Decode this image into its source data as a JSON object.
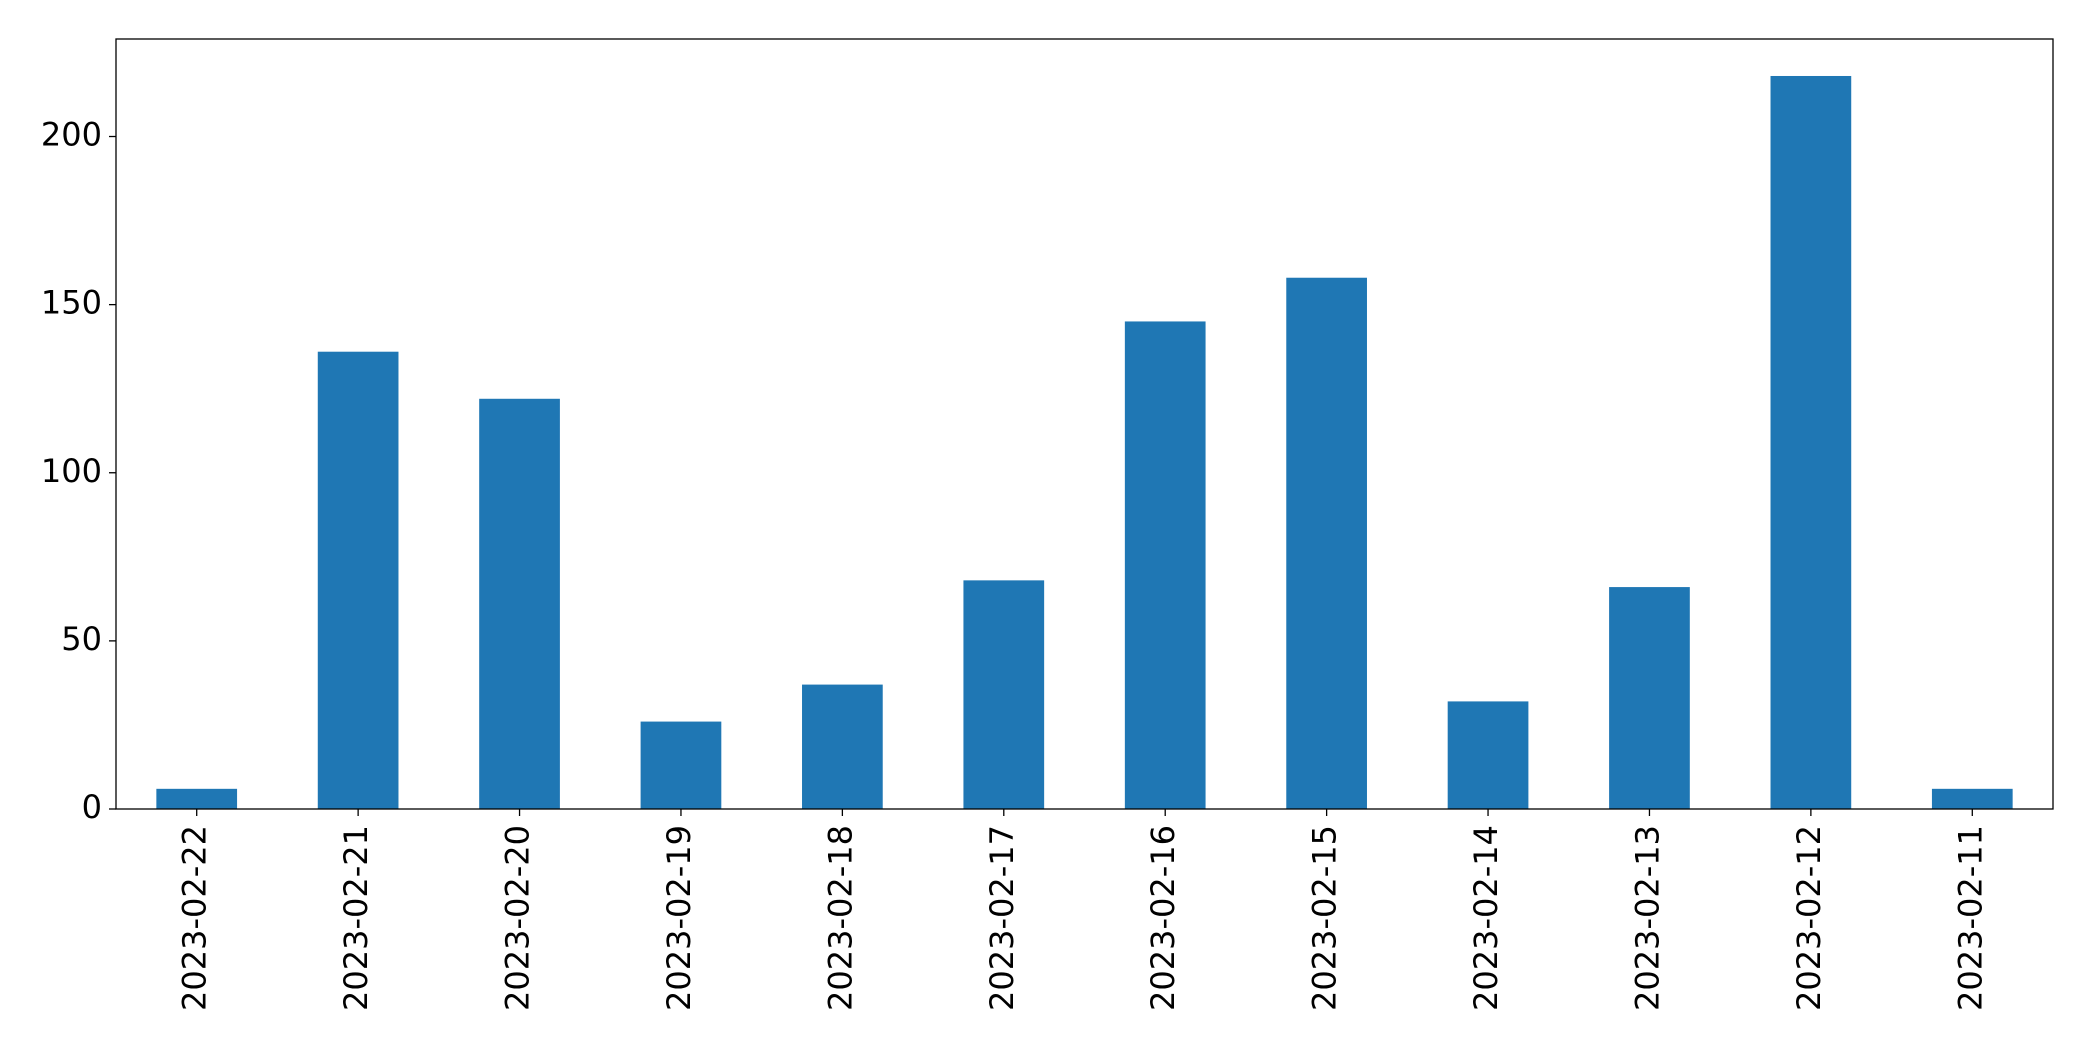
{
  "chart_data": {
    "type": "bar",
    "categories": [
      "2023-02-22",
      "2023-02-21",
      "2023-02-20",
      "2023-02-19",
      "2023-02-18",
      "2023-02-17",
      "2023-02-16",
      "2023-02-15",
      "2023-02-14",
      "2023-02-13",
      "2023-02-12",
      "2023-02-11"
    ],
    "values": [
      6,
      136,
      122,
      26,
      37,
      68,
      145,
      158,
      32,
      66,
      218,
      6
    ],
    "color": "#1f77b4",
    "ylim": [
      0,
      229
    ],
    "yticks": [
      0,
      50,
      100,
      150,
      200
    ],
    "grid": false
  }
}
